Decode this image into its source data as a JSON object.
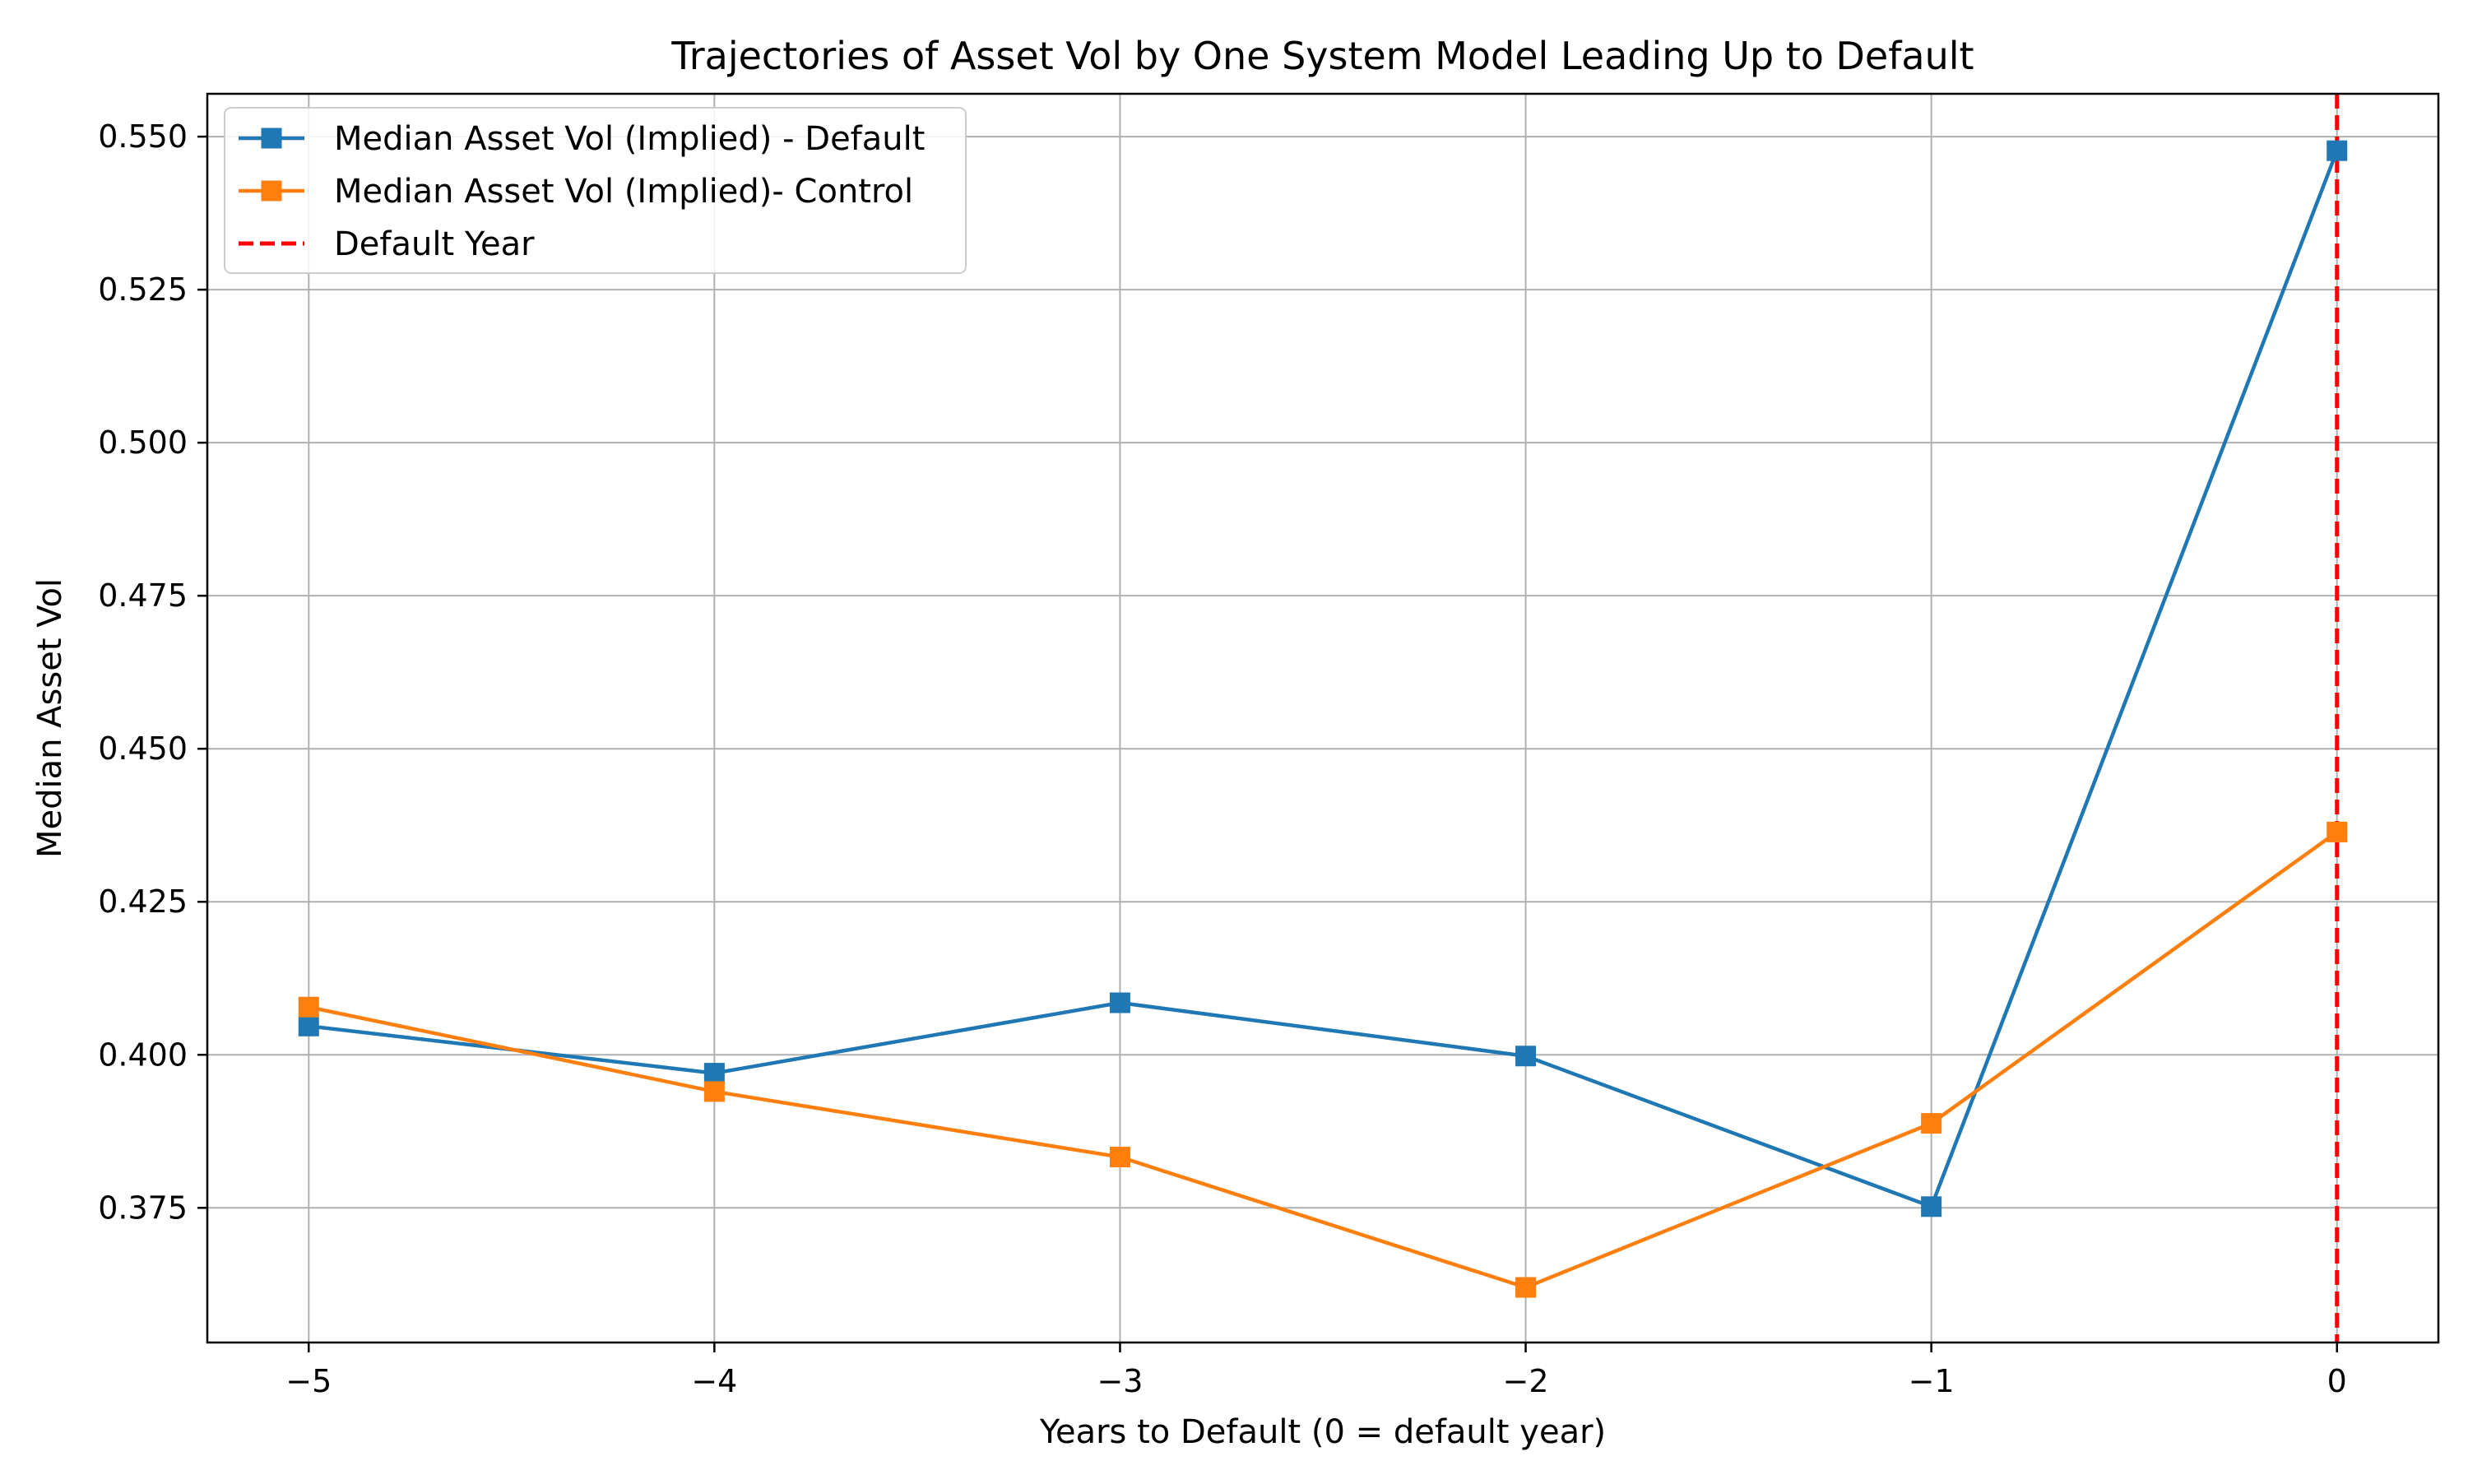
{
  "chart_data": {
    "type": "line",
    "title": "Trajectories of Asset Vol by One System Model Leading Up to Default",
    "xlabel": "Years to Default (0 = default year)",
    "ylabel": "Median Asset Vol",
    "x": [
      -5,
      -4,
      -3,
      -2,
      -1,
      0
    ],
    "x_tick_labels": [
      "−5",
      "−4",
      "−3",
      "−2",
      "−1",
      "0"
    ],
    "xlim": [
      -5.25,
      0.25
    ],
    "ylim": [
      0.353,
      0.557
    ],
    "y_ticks": [
      0.375,
      0.4,
      0.425,
      0.45,
      0.475,
      0.5,
      0.525,
      0.55
    ],
    "y_tick_labels": [
      "0.375",
      "0.400",
      "0.425",
      "0.450",
      "0.475",
      "0.500",
      "0.525",
      "0.550"
    ],
    "grid": true,
    "legend_position": "top-left",
    "series": [
      {
        "name": "Median Asset Vol (Implied) - Default",
        "color": "#1f77b4",
        "marker": "square",
        "values": [
          0.4047,
          0.397,
          0.4085,
          0.3998,
          0.3752,
          0.5477
        ]
      },
      {
        "name": "Median Asset Vol (Implied)- Control",
        "color": "#ff7f0e",
        "marker": "square",
        "values": [
          0.4078,
          0.394,
          0.3833,
          0.362,
          0.3888,
          0.4364
        ]
      }
    ],
    "vline": {
      "name": "Default Year",
      "x": 0,
      "color": "#ff0000",
      "style": "dashed"
    }
  }
}
